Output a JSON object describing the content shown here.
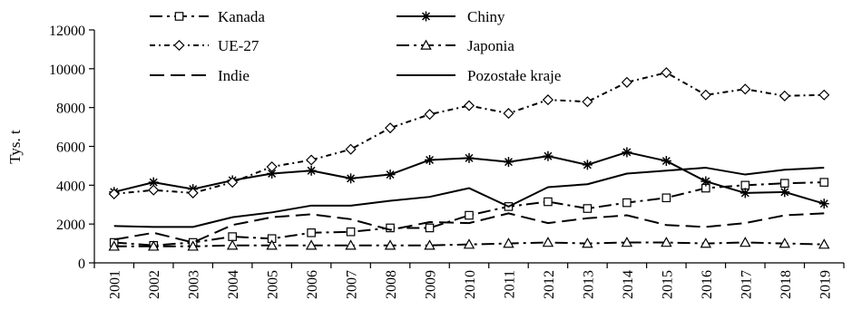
{
  "chart_data": {
    "type": "line",
    "title": "",
    "xlabel": "",
    "ylabel": "Tys. t",
    "ylim": [
      0,
      12000
    ],
    "yticks": [
      0,
      2000,
      4000,
      6000,
      8000,
      10000,
      12000
    ],
    "grid": false,
    "legend_position": "top",
    "categories": [
      "2001",
      "2002",
      "2003",
      "2004",
      "2005",
      "2006",
      "2007",
      "2008",
      "2009",
      "2010",
      "2011",
      "2012",
      "2013",
      "2014",
      "2015",
      "2016",
      "2017",
      "2018",
      "2019"
    ],
    "series": [
      {
        "name": "Kanada",
        "marker": "square",
        "dash": "long-dash-dot",
        "values": [
          1050,
          900,
          1050,
          1350,
          1250,
          1550,
          1600,
          1800,
          1800,
          2450,
          2900,
          3150,
          2800,
          3100,
          3350,
          3850,
          4000,
          4100,
          4150
        ]
      },
      {
        "name": "Chiny",
        "marker": "star",
        "dash": "solid",
        "values": [
          3650,
          4150,
          3800,
          4250,
          4600,
          4750,
          4350,
          4550,
          5300,
          5400,
          5200,
          5500,
          5050,
          5700,
          5250,
          4200,
          3600,
          3650,
          3050
        ]
      },
      {
        "name": "UE-27",
        "marker": "diamond",
        "dash": "dash-dot",
        "values": [
          3550,
          3750,
          3600,
          4150,
          4950,
          5300,
          5850,
          6950,
          7650,
          8100,
          7700,
          8400,
          8300,
          9300,
          9800,
          8650,
          8950,
          8600,
          8650
        ]
      },
      {
        "name": "Japonia",
        "marker": "triangle",
        "dash": "long-dash-dot",
        "values": [
          850,
          850,
          850,
          900,
          900,
          900,
          900,
          900,
          900,
          950,
          1000,
          1050,
          1000,
          1050,
          1050,
          1000,
          1050,
          1000,
          950
        ]
      },
      {
        "name": "Indie",
        "marker": "none",
        "dash": "long-dash",
        "values": [
          1200,
          1550,
          1050,
          1950,
          2350,
          2500,
          2250,
          1700,
          2100,
          2050,
          2550,
          2050,
          2300,
          2450,
          1950,
          1850,
          2050,
          2450,
          2550
        ]
      },
      {
        "name": "Pozostałe kraje",
        "marker": "none",
        "dash": "solid",
        "values": [
          1900,
          1850,
          1850,
          2350,
          2600,
          2950,
          2950,
          3200,
          3400,
          3850,
          2900,
          3900,
          4050,
          4600,
          4750,
          4900,
          4550,
          4800,
          4900
        ]
      }
    ]
  }
}
